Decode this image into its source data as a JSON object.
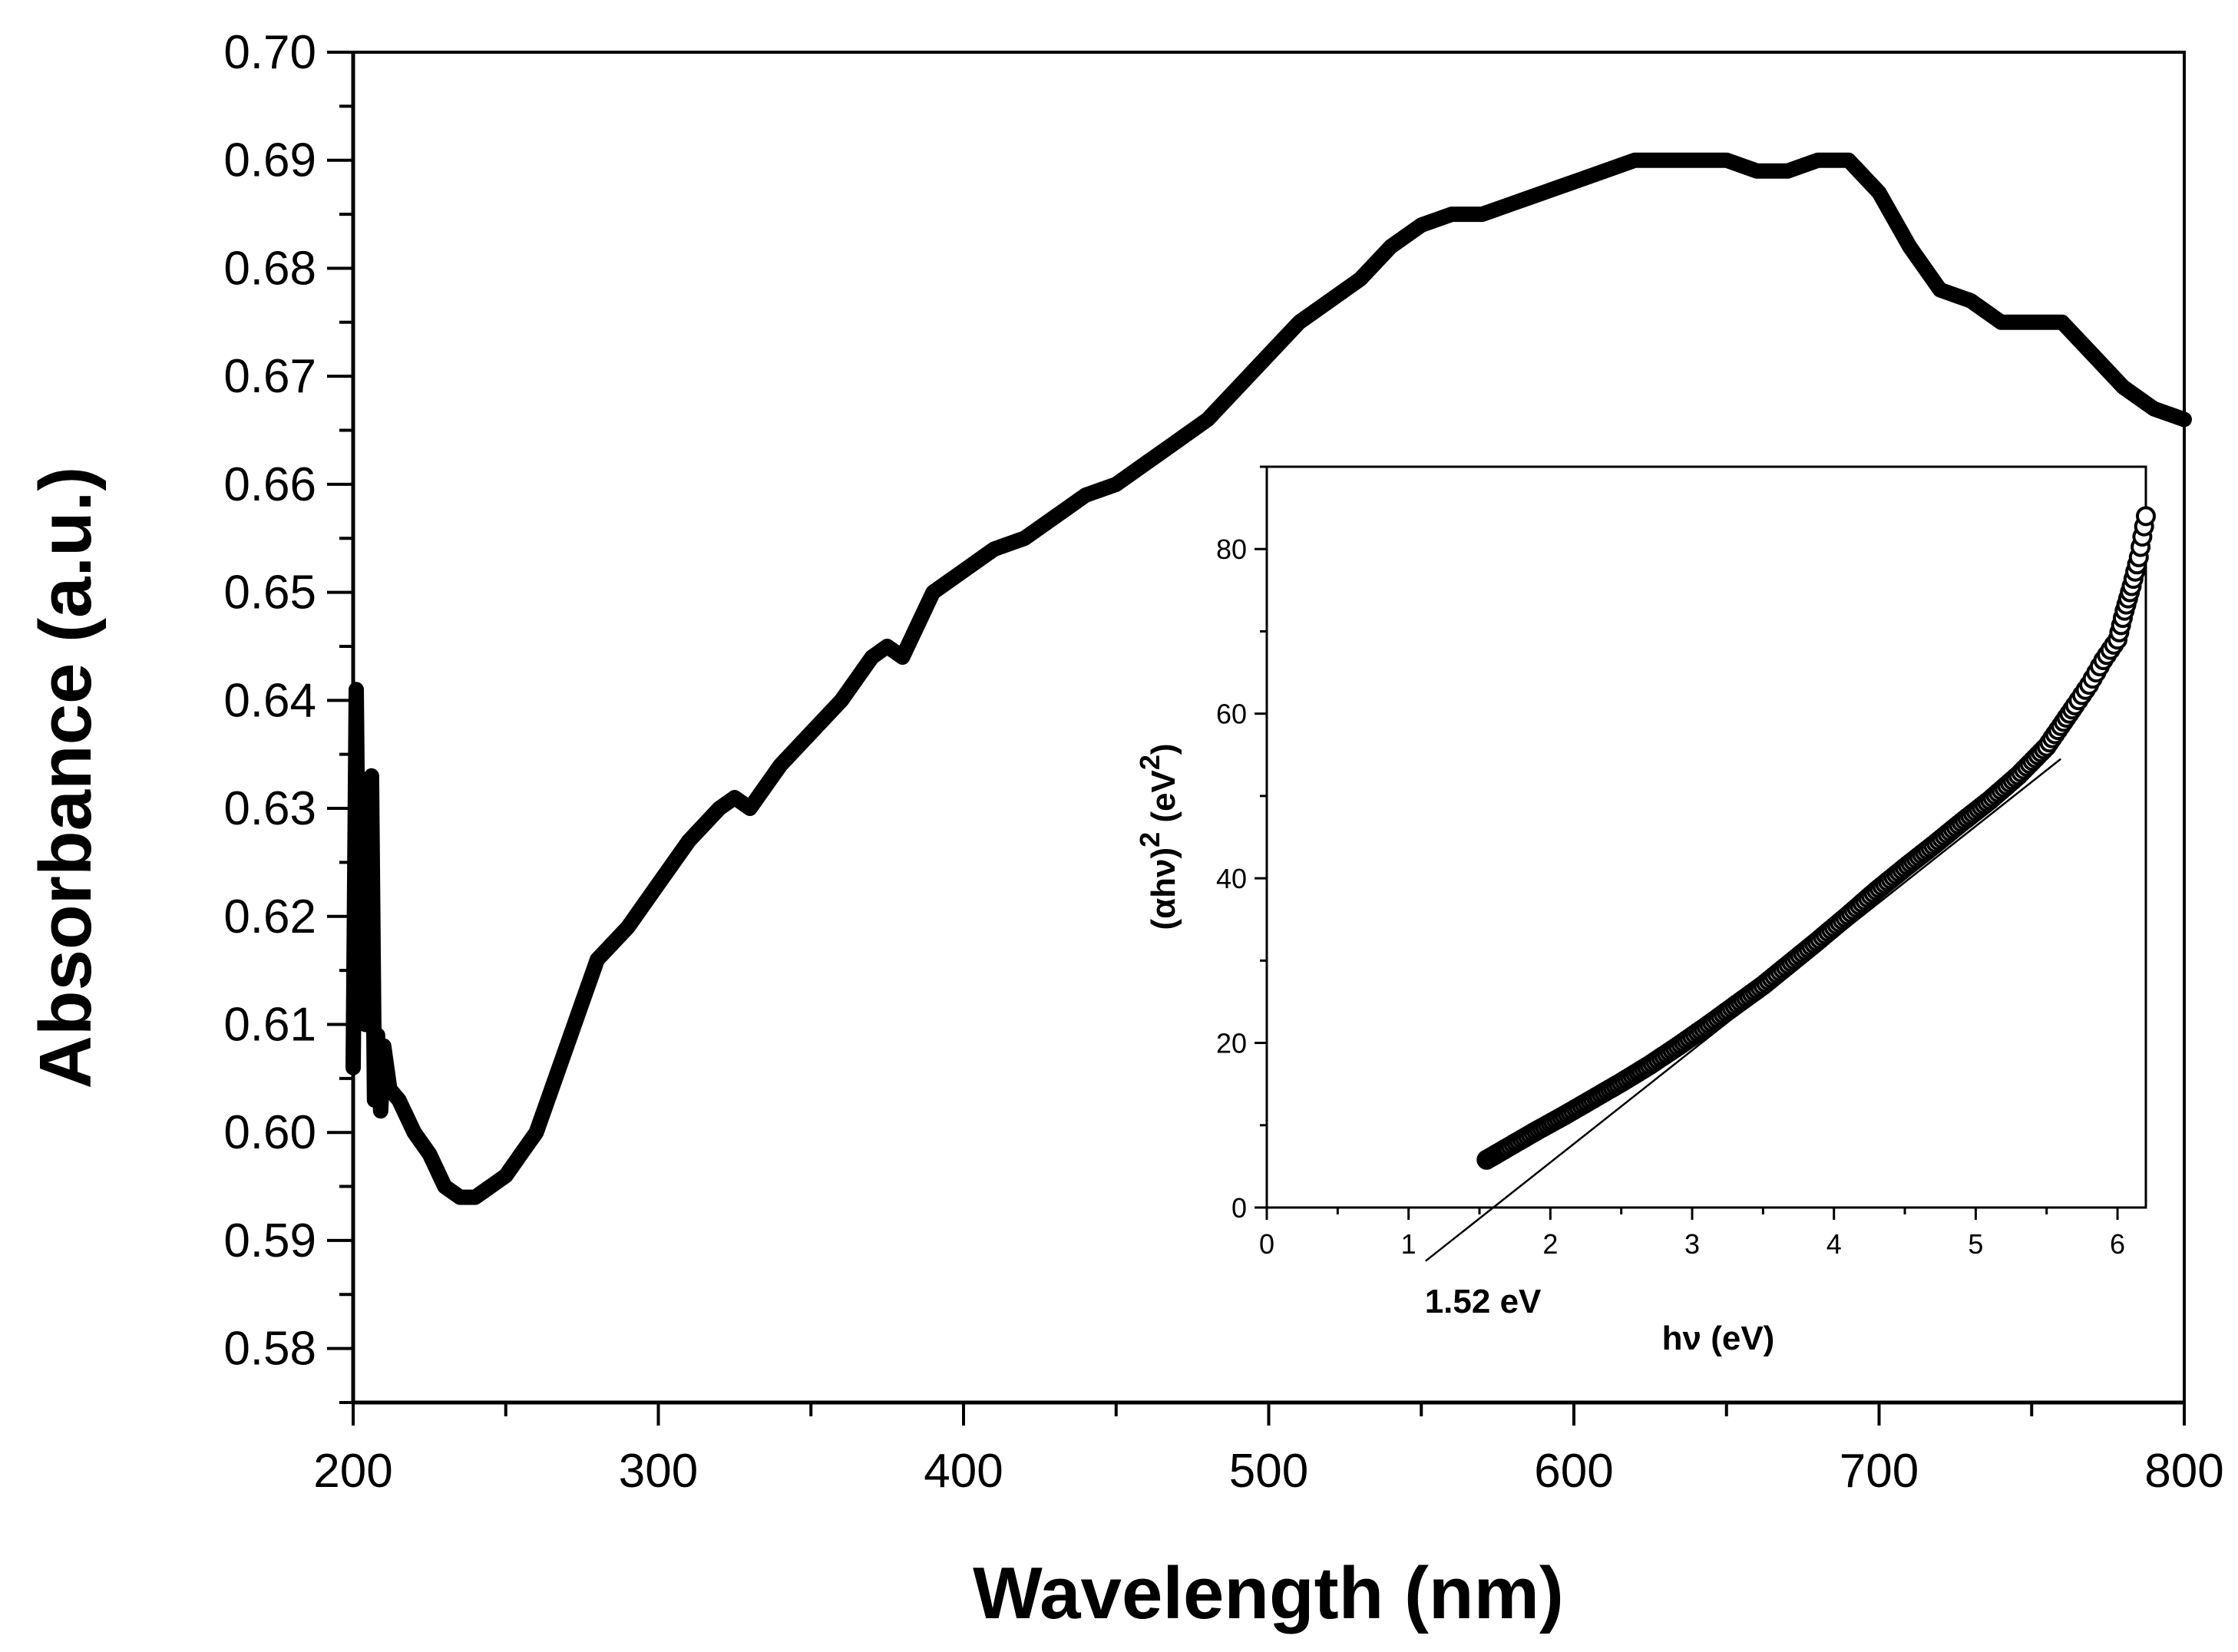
{
  "chart_data": [
    {
      "type": "line",
      "title": "",
      "xlabel": "Wavelength (nm)",
      "ylabel": "Absorbance (a.u.)",
      "xlim": [
        200,
        800
      ],
      "ylim": [
        0.575,
        0.7
      ],
      "xticks": [
        200,
        300,
        400,
        500,
        600,
        700,
        800
      ],
      "xtick_labels": [
        "200",
        "300",
        "400",
        "500",
        "600",
        "700",
        "800"
      ],
      "yticks": [
        0.58,
        0.59,
        0.6,
        0.61,
        0.62,
        0.63,
        0.64,
        0.65,
        0.66,
        0.67,
        0.68,
        0.69,
        0.7
      ],
      "ytick_labels": [
        "0.58",
        "0.59",
        "0.60",
        "0.61",
        "0.62",
        "0.63",
        "0.64",
        "0.65",
        "0.66",
        "0.67",
        "0.68",
        "0.69",
        "0.70"
      ],
      "grid": false,
      "series": [
        {
          "name": "Absorbance",
          "color": "#000000",
          "x": [
            200,
            201,
            202,
            203,
            204,
            205,
            206,
            207,
            208,
            209,
            210,
            212,
            215,
            220,
            225,
            230,
            235,
            240,
            245,
            250,
            255,
            260,
            265,
            270,
            275,
            280,
            290,
            300,
            310,
            320,
            325,
            330,
            340,
            350,
            360,
            370,
            375,
            380,
            385,
            390,
            400,
            410,
            420,
            430,
            440,
            450,
            460,
            470,
            480,
            490,
            500,
            510,
            520,
            530,
            540,
            550,
            560,
            570,
            580,
            590,
            600,
            610,
            620,
            630,
            640,
            650,
            660,
            670,
            680,
            690,
            700,
            710,
            720,
            730,
            740,
            750,
            760,
            770,
            780,
            790,
            800
          ],
          "y": [
            0.606,
            0.641,
            0.612,
            0.631,
            0.61,
            0.625,
            0.633,
            0.603,
            0.609,
            0.602,
            0.608,
            0.604,
            0.603,
            0.6,
            0.598,
            0.595,
            0.594,
            0.594,
            0.595,
            0.596,
            0.598,
            0.6,
            0.604,
            0.608,
            0.612,
            0.616,
            0.619,
            0.623,
            0.627,
            0.63,
            0.631,
            0.63,
            0.634,
            0.637,
            0.64,
            0.644,
            0.645,
            0.644,
            0.647,
            0.65,
            0.652,
            0.654,
            0.655,
            0.657,
            0.659,
            0.66,
            0.662,
            0.664,
            0.666,
            0.669,
            0.672,
            0.675,
            0.677,
            0.679,
            0.682,
            0.684,
            0.685,
            0.685,
            0.686,
            0.687,
            0.688,
            0.689,
            0.69,
            0.69,
            0.69,
            0.69,
            0.689,
            0.689,
            0.69,
            0.69,
            0.687,
            0.682,
            0.678,
            0.677,
            0.675,
            0.675,
            0.675,
            0.672,
            0.669,
            0.667,
            0.666
          ]
        }
      ]
    },
    {
      "type": "scatter",
      "title": "",
      "xlabel": "hν (eV)",
      "ylabel_parts": [
        "(αhν)",
        "2",
        " (eV",
        "2",
        ")"
      ],
      "xlim": [
        0,
        6.2
      ],
      "ylim": [
        0,
        90
      ],
      "xticks": [
        0,
        1,
        2,
        3,
        4,
        5,
        6
      ],
      "xtick_labels": [
        "0",
        "1",
        "2",
        "3",
        "4",
        "5",
        "6"
      ],
      "yticks": [
        0,
        20,
        40,
        60,
        80
      ],
      "ytick_labels": [
        "0",
        "20",
        "40",
        "60",
        "80"
      ],
      "grid": false,
      "series": [
        {
          "name": "(αhν)^2",
          "marker": "open-circle",
          "x": [
            1.55,
            1.7,
            1.9,
            2.1,
            2.3,
            2.5,
            2.7,
            2.9,
            3.1,
            3.3,
            3.5,
            3.7,
            3.9,
            4.1,
            4.3,
            4.5,
            4.7,
            4.9,
            5.1,
            5.3,
            5.5,
            5.7,
            5.8,
            5.9,
            6.0,
            6.05,
            6.1,
            6.15,
            6.2
          ],
          "y": [
            5.8,
            7.3,
            9.3,
            11.2,
            13.2,
            15.2,
            17.3,
            19.6,
            22.0,
            24.5,
            27.0,
            29.8,
            32.6,
            35.5,
            38.5,
            41.3,
            44.0,
            46.8,
            49.5,
            52.5,
            56.0,
            61.0,
            63.5,
            66.5,
            69.0,
            72.5,
            75.5,
            79.0,
            84.0
          ]
        }
      ],
      "fit_line": {
        "x": [
          1.12,
          5.6
        ],
        "y": [
          -6.5,
          54.5
        ]
      },
      "annotation": {
        "text": "1.52 eV",
        "x": 1.52
      }
    }
  ]
}
